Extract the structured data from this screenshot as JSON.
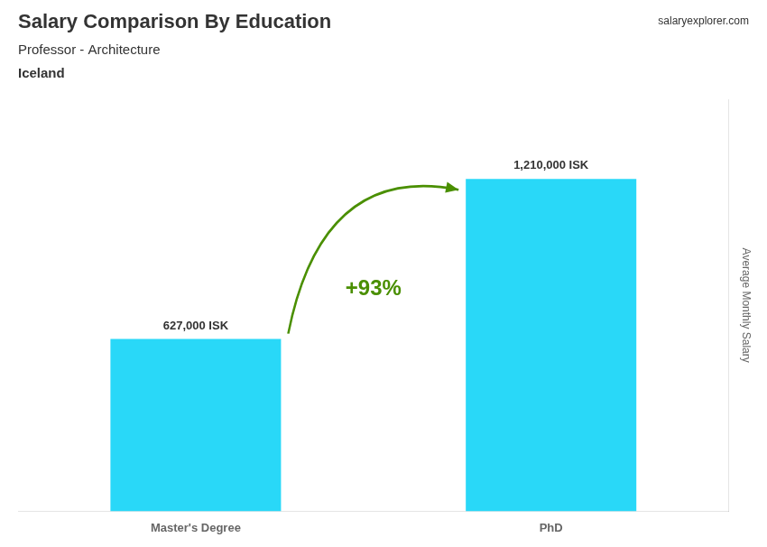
{
  "chart_data": {
    "type": "bar",
    "title": "Salary Comparison By Education",
    "subtitle": "Professor - Architecture",
    "annotations": [
      "Iceland",
      "salaryexplorer.com",
      "+93%"
    ],
    "ylabel": "Average Monthly Salary",
    "categories": [
      "Master's Degree",
      "PhD"
    ],
    "values": [
      627000,
      1210000
    ],
    "value_labels": [
      "627,000 ISK",
      "1,210,000 ISK"
    ],
    "data_labels": true,
    "color": "#29d8f8",
    "ylim": [
      0,
      1500000
    ],
    "grid": false,
    "tick_labels": "x"
  }
}
